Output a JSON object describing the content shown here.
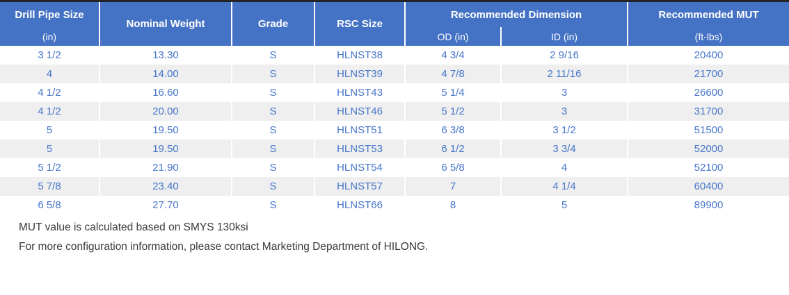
{
  "table": {
    "header": {
      "drill_pipe_size": {
        "line1": "Drill Pipe Size",
        "line2": "(in)"
      },
      "nominal_weight": "Nominal Weight",
      "grade": "Grade",
      "rsc_size": "RSC Size",
      "recommended_dimension": {
        "label": "Recommended Dimension",
        "od": "OD (in)",
        "id": "ID (in)"
      },
      "recommended_mut": {
        "line1": "Recommended MUT",
        "line2": "(ft-lbs)"
      }
    },
    "rows": [
      {
        "size": "3 1/2",
        "weight": "13.30",
        "grade": "S",
        "rsc": "HLNST38",
        "od": "4 3/4",
        "id": "2 9/16",
        "mut": "20400"
      },
      {
        "size": "4",
        "weight": "14.00",
        "grade": "S",
        "rsc": "HLNST39",
        "od": "4 7/8",
        "id": "2 11/16",
        "mut": "21700"
      },
      {
        "size": "4 1/2",
        "weight": "16.60",
        "grade": "S",
        "rsc": "HLNST43",
        "od": "5 1/4",
        "id": "3",
        "mut": "26600"
      },
      {
        "size": "4 1/2",
        "weight": "20.00",
        "grade": "S",
        "rsc": "HLNST46",
        "od": "5 1/2",
        "id": "3",
        "mut": "31700"
      },
      {
        "size": "5",
        "weight": "19.50",
        "grade": "S",
        "rsc": "HLNST51",
        "od": "6 3/8",
        "id": "3 1/2",
        "mut": "51500"
      },
      {
        "size": "5",
        "weight": "19.50",
        "grade": "S",
        "rsc": "HLNST53",
        "od": "6 1/2",
        "id": "3 3/4",
        "mut": "52000"
      },
      {
        "size": "5 1/2",
        "weight": "21.90",
        "grade": "S",
        "rsc": "HLNST54",
        "od": "6 5/8",
        "id": "4",
        "mut": "52100"
      },
      {
        "size": "5 7/8",
        "weight": "23.40",
        "grade": "S",
        "rsc": "HLNST57",
        "od": "7",
        "id": "4 1/4",
        "mut": "60400"
      },
      {
        "size": "6 5/8",
        "weight": "27.70",
        "grade": "S",
        "rsc": "HLNST66",
        "od": "8",
        "id": "5",
        "mut": "89900"
      }
    ]
  },
  "notes": [
    "MUT value is calculated based on SMYS 130ksi",
    "For more configuration information, please contact Marketing Department of HILONG."
  ],
  "colors": {
    "header_bg": "#4472C4",
    "header_text": "#FFFFFF",
    "row_alt": "#EFEFEF",
    "text_blue": "#4776CB",
    "note_text": "#3A3A3A",
    "top_bar": "#242424"
  }
}
